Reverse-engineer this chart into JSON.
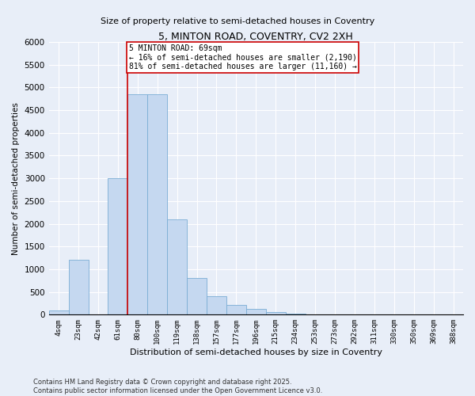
{
  "title": "5, MINTON ROAD, COVENTRY, CV2 2XH",
  "subtitle": "Size of property relative to semi-detached houses in Coventry",
  "xlabel": "Distribution of semi-detached houses by size in Coventry",
  "ylabel": "Number of semi-detached properties",
  "categories": [
    "4sqm",
    "23sqm",
    "42sqm",
    "61sqm",
    "80sqm",
    "100sqm",
    "119sqm",
    "138sqm",
    "157sqm",
    "177sqm",
    "196sqm",
    "215sqm",
    "234sqm",
    "253sqm",
    "273sqm",
    "292sqm",
    "311sqm",
    "330sqm",
    "350sqm",
    "369sqm",
    "388sqm"
  ],
  "values": [
    100,
    1200,
    0,
    3000,
    4850,
    4850,
    2100,
    800,
    400,
    220,
    130,
    60,
    30,
    10,
    0,
    0,
    0,
    0,
    0,
    0,
    0
  ],
  "bar_color": "#c5d8f0",
  "bar_edge_color": "#7aadd4",
  "vline_color": "#cc0000",
  "annotation_text": "5 MINTON ROAD: 69sqm\n← 16% of semi-detached houses are smaller (2,190)\n81% of semi-detached houses are larger (11,160) →",
  "ylim": [
    0,
    6000
  ],
  "yticks": [
    0,
    500,
    1000,
    1500,
    2000,
    2500,
    3000,
    3500,
    4000,
    4500,
    5000,
    5500,
    6000
  ],
  "background_color": "#e8eef8",
  "plot_background": "#e8eef8",
  "footer": "Contains HM Land Registry data © Crown copyright and database right 2025.\nContains public sector information licensed under the Open Government Licence v3.0.",
  "annotation_box_color": "#ffffff",
  "annotation_box_edge": "#cc0000",
  "grid_color": "#ffffff"
}
